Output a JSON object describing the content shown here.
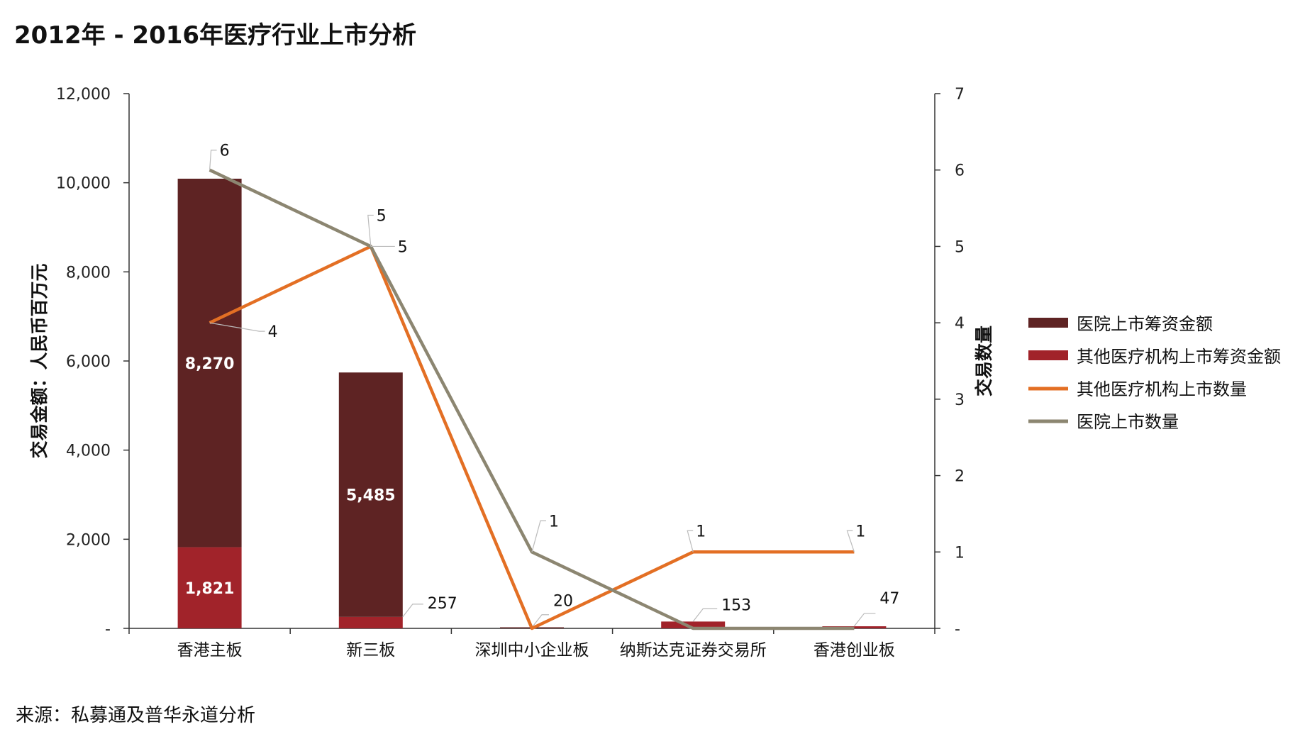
{
  "title": "2012年 - 2016年医疗行业上市分析",
  "source": "来源：私募通及普华永道分析",
  "chart_data": {
    "type": "bar",
    "categories": [
      "香港主板",
      "新三板",
      "深圳中小企业板",
      "纳斯达克证券交易所",
      "香港创业板"
    ],
    "y_left": {
      "label": "交易金额：人民币百万元",
      "ylim": [
        0,
        12000
      ],
      "ticks": [
        0,
        2000,
        4000,
        6000,
        8000,
        10000,
        12000
      ],
      "tick_labels": [
        "-",
        "2,000",
        "4,000",
        "6,000",
        "8,000",
        "10,000",
        "12,000"
      ]
    },
    "y_right": {
      "label": "交易数量",
      "ylim": [
        0,
        7
      ],
      "ticks": [
        0,
        1,
        2,
        3,
        4,
        5,
        6,
        7
      ],
      "tick_labels": [
        "-",
        "1",
        "2",
        "3",
        "4",
        "5",
        "6",
        "7"
      ]
    },
    "series": [
      {
        "name": "其他医疗机构上市筹资金额",
        "kind": "bar",
        "axis": "left",
        "color": "#a1232a",
        "values": [
          1821,
          257,
          0,
          153,
          47
        ],
        "labels": [
          "1,821",
          "257",
          "",
          "153",
          "47"
        ]
      },
      {
        "name": "医院上市筹资金额",
        "kind": "bar",
        "axis": "left",
        "color": "#5e2323",
        "values": [
          8270,
          5485,
          20,
          0,
          0
        ],
        "labels": [
          "8,270",
          "5,485",
          "20",
          "",
          ""
        ]
      },
      {
        "name": "其他医疗机构上市数量",
        "kind": "line",
        "axis": "right",
        "color": "#e36f24",
        "values": [
          4,
          5,
          0,
          1,
          1
        ],
        "labels": [
          "4",
          "5",
          "",
          "1",
          "1"
        ]
      },
      {
        "name": "医院上市数量",
        "kind": "line",
        "axis": "right",
        "color": "#8c8671",
        "values": [
          6,
          5,
          1,
          0,
          0
        ],
        "labels": [
          "6",
          "5",
          "1",
          "",
          ""
        ]
      }
    ],
    "legend_order": [
      "医院上市筹资金额",
      "其他医疗机构上市筹资金额",
      "其他医疗机构上市数量",
      "医院上市数量"
    ],
    "legend_position": "right",
    "grid": false
  }
}
